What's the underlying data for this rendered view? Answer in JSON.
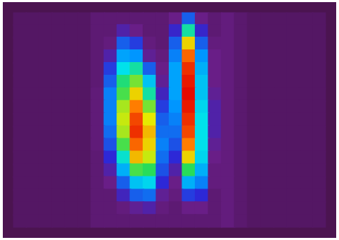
{
  "chart_data": {
    "type": "heatmap",
    "zlim": [
      0,
      100
    ],
    "tick_labels": false,
    "grid": false,
    "cells": [
      [
        3,
        3,
        3,
        3,
        3,
        3,
        6,
        6,
        6,
        6,
        6,
        6,
        10,
        30,
        10,
        6,
        8,
        5,
        3,
        3,
        3,
        3,
        3,
        3
      ],
      [
        3,
        3,
        3,
        3,
        3,
        3,
        6,
        6,
        15,
        10,
        6,
        6,
        20,
        55,
        20,
        6,
        8,
        5,
        3,
        3,
        3,
        3,
        3,
        3
      ],
      [
        3,
        3,
        3,
        3,
        3,
        3,
        6,
        8,
        30,
        25,
        8,
        6,
        30,
        75,
        30,
        8,
        8,
        5,
        3,
        3,
        3,
        3,
        3,
        3
      ],
      [
        3,
        3,
        3,
        3,
        3,
        3,
        6,
        15,
        40,
        38,
        12,
        8,
        35,
        88,
        38,
        10,
        8,
        5,
        3,
        3,
        3,
        3,
        3,
        3
      ],
      [
        3,
        3,
        3,
        3,
        3,
        3,
        6,
        25,
        50,
        55,
        30,
        10,
        40,
        95,
        42,
        10,
        8,
        5,
        3,
        3,
        3,
        3,
        3,
        3
      ],
      [
        3,
        3,
        3,
        3,
        3,
        3,
        6,
        30,
        58,
        65,
        45,
        12,
        40,
        98,
        45,
        10,
        8,
        5,
        3,
        3,
        3,
        3,
        3,
        3
      ],
      [
        3,
        3,
        3,
        3,
        3,
        3,
        7,
        35,
        62,
        75,
        55,
        18,
        40,
        100,
        45,
        12,
        8,
        5,
        3,
        3,
        3,
        3,
        3,
        3
      ],
      [
        3,
        3,
        3,
        3,
        3,
        3,
        7,
        35,
        68,
        85,
        65,
        25,
        38,
        98,
        48,
        15,
        8,
        5,
        3,
        3,
        3,
        3,
        3,
        3
      ],
      [
        3,
        3,
        3,
        3,
        3,
        3,
        7,
        35,
        70,
        92,
        72,
        30,
        35,
        95,
        50,
        15,
        8,
        5,
        3,
        3,
        3,
        3,
        3,
        3
      ],
      [
        3,
        3,
        3,
        3,
        3,
        3,
        7,
        32,
        68,
        95,
        78,
        32,
        32,
        92,
        50,
        15,
        8,
        5,
        3,
        3,
        3,
        3,
        3,
        3
      ],
      [
        3,
        3,
        3,
        3,
        3,
        3,
        7,
        28,
        62,
        88,
        75,
        35,
        28,
        85,
        50,
        12,
        8,
        5,
        3,
        3,
        3,
        3,
        3,
        3
      ],
      [
        3,
        3,
        3,
        3,
        3,
        3,
        6,
        22,
        52,
        78,
        70,
        32,
        22,
        75,
        48,
        10,
        8,
        5,
        3,
        3,
        3,
        3,
        3,
        3
      ],
      [
        3,
        3,
        3,
        3,
        3,
        3,
        6,
        15,
        42,
        62,
        60,
        28,
        15,
        60,
        42,
        8,
        8,
        5,
        3,
        3,
        3,
        3,
        3,
        3
      ],
      [
        3,
        3,
        3,
        3,
        3,
        3,
        6,
        10,
        30,
        45,
        48,
        22,
        10,
        42,
        35,
        8,
        8,
        5,
        3,
        3,
        3,
        3,
        3,
        3
      ],
      [
        3,
        3,
        3,
        3,
        3,
        3,
        6,
        6,
        18,
        30,
        32,
        12,
        8,
        25,
        22,
        6,
        8,
        5,
        3,
        3,
        3,
        3,
        3,
        3
      ],
      [
        3,
        3,
        3,
        3,
        3,
        3,
        6,
        6,
        8,
        12,
        15,
        8,
        6,
        10,
        10,
        6,
        8,
        5,
        3,
        3,
        3,
        3,
        3,
        3
      ],
      [
        3,
        3,
        3,
        3,
        3,
        3,
        6,
        6,
        6,
        6,
        6,
        6,
        6,
        6,
        6,
        6,
        8,
        5,
        3,
        3,
        3,
        3,
        3,
        3
      ]
    ]
  }
}
